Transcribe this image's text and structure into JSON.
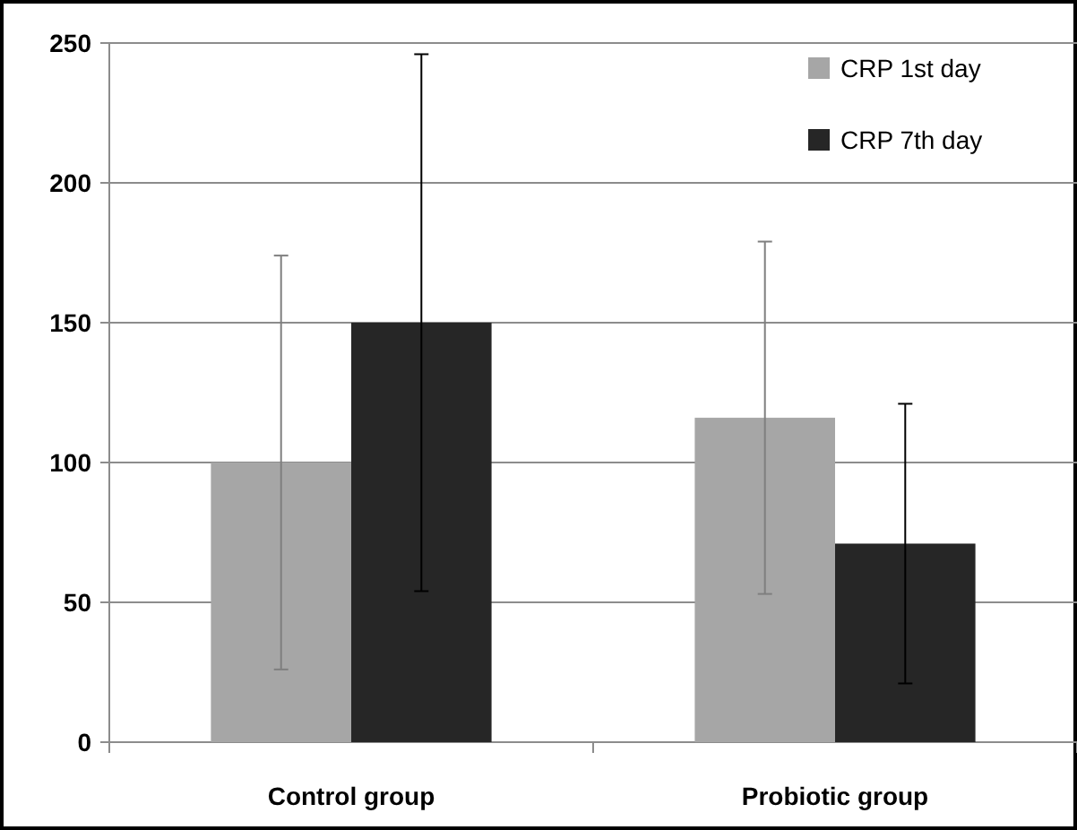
{
  "chart_data": {
    "type": "bar",
    "categories": [
      "Control group",
      "Probiotic group"
    ],
    "series": [
      {
        "name": "CRP 1st day",
        "color": "#a6a6a6",
        "values": [
          100,
          116
        ],
        "errors": [
          74,
          63
        ]
      },
      {
        "name": "CRP 7th day",
        "color": "#262626",
        "values": [
          150,
          71
        ],
        "errors": [
          96,
          50
        ]
      }
    ],
    "ylim": [
      0,
      250
    ],
    "yticks": [
      0,
      50,
      100,
      150,
      200,
      250
    ],
    "grid": "y",
    "legend": "top right"
  }
}
